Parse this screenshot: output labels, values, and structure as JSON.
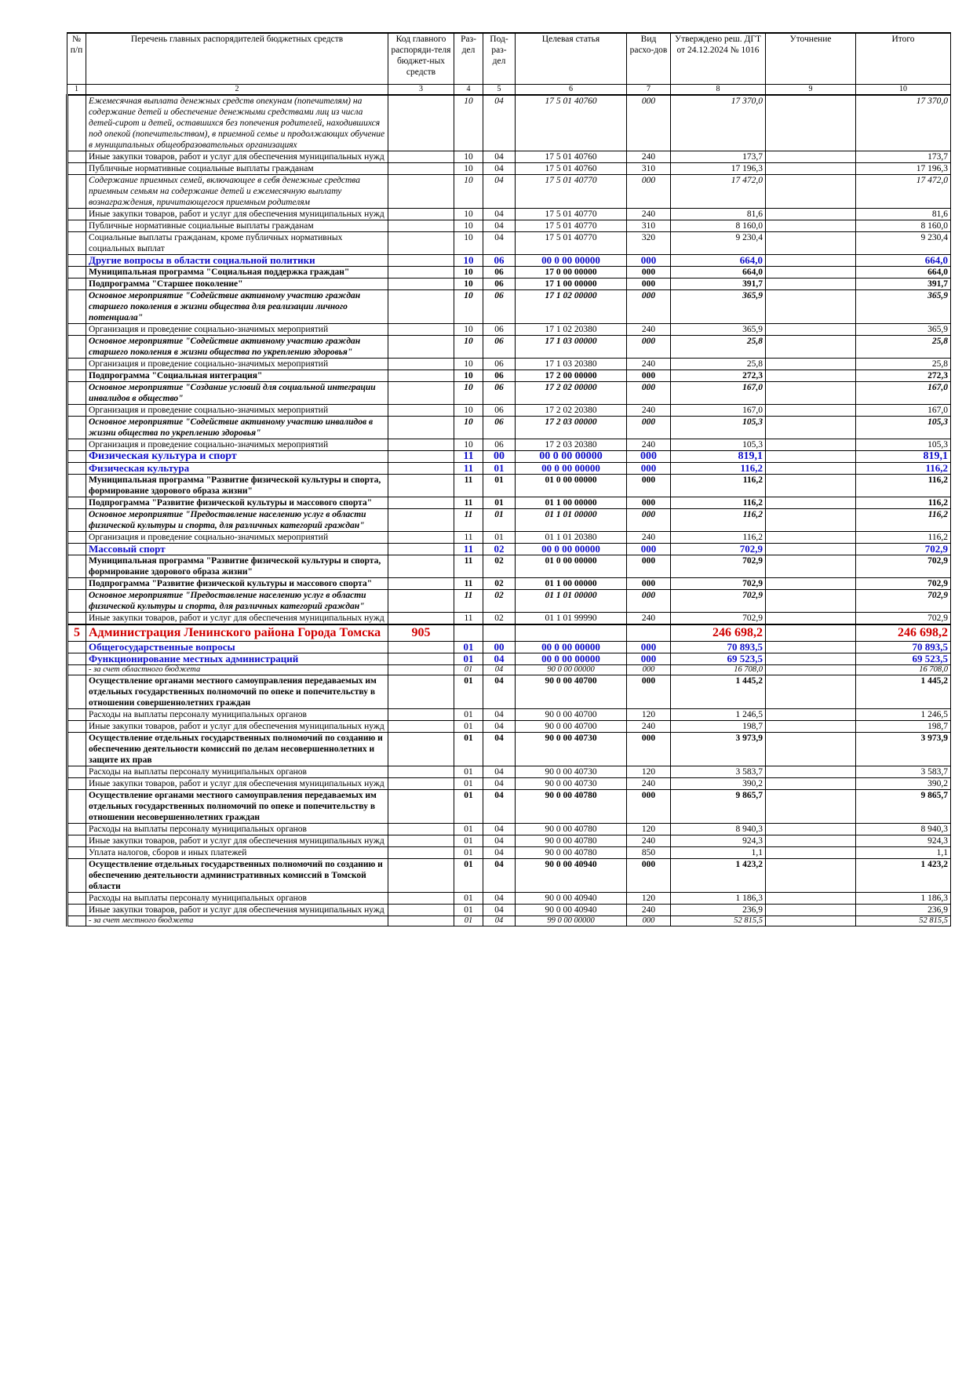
{
  "table": {
    "header": [
      "№ п/п",
      "Перечень главных распорядителей бюджетных средств",
      "Код главного распоряди-теля бюджет-ных средств",
      "Раз-дел",
      "Под-раз-дел",
      "Целевая статья",
      "Вид расхо-дов",
      "Утверждено реш. ДГТ от 24.12.2024 № 1016",
      "Уточнение",
      "Итого"
    ],
    "column_numbers": [
      1,
      2,
      3,
      4,
      5,
      6,
      7,
      8,
      9,
      10
    ],
    "rows": [
      [
        null,
        "Ежемесячная выплата денежных средств опекунам (попечителям) на содержание детей и обеспечение денежными средствами лиц из числа детей-сирот и детей, оставшихся без попечения родителей, находившихся под опекой (попечительством), в приемной семье и продолжающих обучение в муниципальных общеобразовательных организациях",
        null,
        "10",
        "04",
        "17 5 01 40760",
        "000",
        "17 370,0",
        null,
        "17 370,0"
      ],
      [
        null,
        "Иные закупки товаров, работ и услуг для обеспечения муниципальных нужд",
        null,
        "10",
        "04",
        "17 5 01 40760",
        "240",
        "173,7",
        null,
        "173,7"
      ],
      [
        null,
        "Публичные нормативные социальные выплаты гражданам",
        null,
        "10",
        "04",
        "17 5 01 40760",
        "310",
        "17 196,3",
        null,
        "17 196,3"
      ],
      [
        null,
        "Содержание приемных семей, включающее в себя денежные средства приемным семьям на содержание детей и ежемесячную выплату вознаграждения, причитающегося приемным родителям",
        null,
        "10",
        "04",
        "17 5 01 40770",
        "000",
        "17 472,0",
        null,
        "17 472,0"
      ],
      [
        null,
        "Иные закупки товаров, работ и услуг для обеспечения муниципальных нужд",
        null,
        "10",
        "04",
        "17 5 01 40770",
        "240",
        "81,6",
        null,
        "81,6"
      ],
      [
        null,
        "Публичные нормативные социальные выплаты гражданам",
        null,
        "10",
        "04",
        "17 5 01 40770",
        "310",
        "8 160,0",
        null,
        "8 160,0"
      ],
      [
        null,
        "Социальные выплаты гражданам, кроме публичных нормативных социальных выплат",
        null,
        "10",
        "04",
        "17 5 01 40770",
        "320",
        "9 230,4",
        null,
        "9 230,4"
      ],
      [
        null,
        "Другие вопросы в области социальной политики",
        null,
        "10",
        "06",
        "00 0 00 00000",
        "000",
        "664,0",
        null,
        "664,0"
      ],
      [
        null,
        "Муниципальная программа \"Социальная поддержка граждан\"",
        null,
        "10",
        "06",
        "17 0 00 00000",
        "000",
        "664,0",
        null,
        "664,0"
      ],
      [
        null,
        "Подпрограмма \"Старшее поколение\"",
        null,
        "10",
        "06",
        "17 1 00 00000",
        "000",
        "391,7",
        null,
        "391,7"
      ],
      [
        null,
        "Основное мероприятие \"Содействие активному участию граждан старшего поколения в жизни общества для реализации личного потенциала\"",
        null,
        "10",
        "06",
        "17 1 02 00000",
        "000",
        "365,9",
        null,
        "365,9"
      ],
      [
        null,
        "Организация и проведение социально-значимых мероприятий",
        null,
        "10",
        "06",
        "17 1 02 20380",
        "240",
        "365,9",
        null,
        "365,9"
      ],
      [
        null,
        "Основное мероприятие \"Содействие активному участию граждан старшего поколения в жизни общества по укреплению здоровья\"",
        null,
        "10",
        "06",
        "17 1 03 00000",
        "000",
        "25,8",
        null,
        "25,8"
      ],
      [
        null,
        "Организация и проведение социально-значимых мероприятий",
        null,
        "10",
        "06",
        "17 1 03 20380",
        "240",
        "25,8",
        null,
        "25,8"
      ],
      [
        null,
        "Подпрограмма \"Социальная интеграция\"",
        null,
        "10",
        "06",
        "17 2 00 00000",
        "000",
        "272,3",
        null,
        "272,3"
      ],
      [
        null,
        "Основное мероприятие \"Создание условий для социальной интеграции инвалидов в общество\"",
        null,
        "10",
        "06",
        "17 2 02 00000",
        "000",
        "167,0",
        null,
        "167,0"
      ],
      [
        null,
        "Организация и проведение социально-значимых мероприятий",
        null,
        "10",
        "06",
        "17 2 02 20380",
        "240",
        "167,0",
        null,
        "167,0"
      ],
      [
        null,
        "Основное мероприятие \"Содействие активному участию инвалидов в жизни общества по укреплению здоровья\"",
        null,
        "10",
        "06",
        "17 2 03 00000",
        "000",
        "105,3",
        null,
        "105,3"
      ],
      [
        null,
        "Организация и проведение социально-значимых мероприятий",
        null,
        "10",
        "06",
        "17 2 03 20380",
        "240",
        "105,3",
        null,
        "105,3"
      ],
      [
        null,
        "Физическая культура и спорт",
        null,
        "11",
        "00",
        "00 0 00 00000",
        "000",
        "819,1",
        null,
        "819,1"
      ],
      [
        null,
        "Физическая культура",
        null,
        "11",
        "01",
        "00 0 00 00000",
        "000",
        "116,2",
        null,
        "116,2"
      ],
      [
        null,
        "Муниципальная программа \"Развитие физической культуры и спорта, формирование здорового образа жизни\"",
        null,
        "11",
        "01",
        "01 0 00 00000",
        "000",
        "116,2",
        null,
        "116,2"
      ],
      [
        null,
        "Подпрограмма \"Развитие физической культуры и массового спорта\"",
        null,
        "11",
        "01",
        "01 1 00 00000",
        "000",
        "116,2",
        null,
        "116,2"
      ],
      [
        null,
        "Основное мероприятие \"Предоставление населению услуг в области физической культуры и спорта, для различных категорий граждан\"",
        null,
        "11",
        "01",
        "01 1 01 00000",
        "000",
        "116,2",
        null,
        "116,2"
      ],
      [
        null,
        "Организация и проведение социально-значимых мероприятий",
        null,
        "11",
        "01",
        "01 1 01 20380",
        "240",
        "116,2",
        null,
        "116,2"
      ],
      [
        null,
        "Массовый спорт",
        null,
        "11",
        "02",
        "00 0 00 00000",
        "000",
        "702,9",
        null,
        "702,9"
      ],
      [
        null,
        "Муниципальная программа \"Развитие физической культуры и спорта, формирование здорового образа жизни\"",
        null,
        "11",
        "02",
        "01 0 00 00000",
        "000",
        "702,9",
        null,
        "702,9"
      ],
      [
        null,
        "Подпрограмма \"Развитие физической культуры и массового спорта\"",
        null,
        "11",
        "02",
        "01 1 00 00000",
        "000",
        "702,9",
        null,
        "702,9"
      ],
      [
        null,
        "Основное мероприятие \"Предоставление населению услуг в области физической культуры и спорта, для различных категорий граждан\"",
        null,
        "11",
        "02",
        "01 1 01 00000",
        "000",
        "702,9",
        null,
        "702,9"
      ],
      [
        null,
        "Иные закупки товаров, работ и услуг для обеспечения муниципальных нужд",
        null,
        "11",
        "02",
        "01 1 01 99990",
        "240",
        "702,9",
        null,
        "702,9"
      ],
      [
        "5",
        "Администрация Ленинского района Города Томска",
        "905",
        null,
        null,
        null,
        null,
        "246 698,2",
        null,
        "246 698,2"
      ],
      [
        null,
        "Общегосударственные вопросы",
        null,
        "01",
        "00",
        "00 0 00 00000",
        "000",
        "70 893,5",
        null,
        "70 893,5"
      ],
      [
        null,
        "Функционирование местных администраций",
        null,
        "01",
        "04",
        "00 0 00 00000",
        "000",
        "69 523,5",
        null,
        "69 523,5"
      ],
      [
        null,
        "- за счет областного бюджета",
        null,
        "01",
        "04",
        "90 0 00 00000",
        "000",
        "16 708,0",
        null,
        "16 708,0"
      ],
      [
        null,
        "Осуществление органами местного самоуправления передаваемых им отдельных государственных полномочий по опеке и попечительству в отношении совершеннолетних граждан",
        null,
        "01",
        "04",
        "90 0 00 40700",
        "000",
        "1 445,2",
        null,
        "1 445,2"
      ],
      [
        null,
        "Расходы на выплаты персоналу муниципальных органов",
        null,
        "01",
        "04",
        "90 0 00 40700",
        "120",
        "1 246,5",
        null,
        "1 246,5"
      ],
      [
        null,
        "Иные закупки товаров, работ и услуг для обеспечения муниципальных нужд",
        null,
        "01",
        "04",
        "90 0 00 40700",
        "240",
        "198,7",
        null,
        "198,7"
      ],
      [
        null,
        "Осуществление отдельных государственных полномочий по созданию и обеспечению деятельности комиссий по делам несовершеннолетних и защите их прав",
        null,
        "01",
        "04",
        "90 0 00 40730",
        "000",
        "3 973,9",
        null,
        "3 973,9"
      ],
      [
        null,
        "Расходы на выплаты персоналу муниципальных органов",
        null,
        "01",
        "04",
        "90 0 00 40730",
        "120",
        "3 583,7",
        null,
        "3 583,7"
      ],
      [
        null,
        "Иные закупки товаров, работ и услуг для обеспечения муниципальных нужд",
        null,
        "01",
        "04",
        "90 0 00 40730",
        "240",
        "390,2",
        null,
        "390,2"
      ],
      [
        null,
        "Осуществление органами местного самоуправления передаваемых им отдельных государственных полномочий по опеке и попечительству в отношении несовершеннолетних граждан",
        null,
        "01",
        "04",
        "90 0 00 40780",
        "000",
        "9 865,7",
        null,
        "9 865,7"
      ],
      [
        null,
        "Расходы на выплаты персоналу муниципальных органов",
        null,
        "01",
        "04",
        "90 0 00 40780",
        "120",
        "8 940,3",
        null,
        "8 940,3"
      ],
      [
        null,
        "Иные закупки товаров, работ и услуг для обеспечения муниципальных нужд",
        null,
        "01",
        "04",
        "90 0 00 40780",
        "240",
        "924,3",
        null,
        "924,3"
      ],
      [
        null,
        "Уплата налогов, сборов и иных платежей",
        null,
        "01",
        "04",
        "90 0 00 40780",
        "850",
        "1,1",
        null,
        "1,1"
      ],
      [
        null,
        "Осуществление отдельных государственных полномочий по созданию и обеспечению деятельности административных комиссий в Томской области",
        null,
        "01",
        "04",
        "90 0 00 40940",
        "000",
        "1 423,2",
        null,
        "1 423,2"
      ],
      [
        null,
        "Расходы на выплаты персоналу муниципальных органов",
        null,
        "01",
        "04",
        "90 0 00 40940",
        "120",
        "1 186,3",
        null,
        "1 186,3"
      ],
      [
        null,
        "Иные закупки товаров, работ и услуг для обеспечения муниципальных нужд",
        null,
        "01",
        "04",
        "90 0 00 40940",
        "240",
        "236,9",
        null,
        "236,9"
      ],
      [
        null,
        "- за счет местного бюджета",
        null,
        "01",
        "04",
        "99 0 00 00000",
        "000",
        "52 815,5",
        null,
        "52 815,5"
      ]
    ]
  }
}
